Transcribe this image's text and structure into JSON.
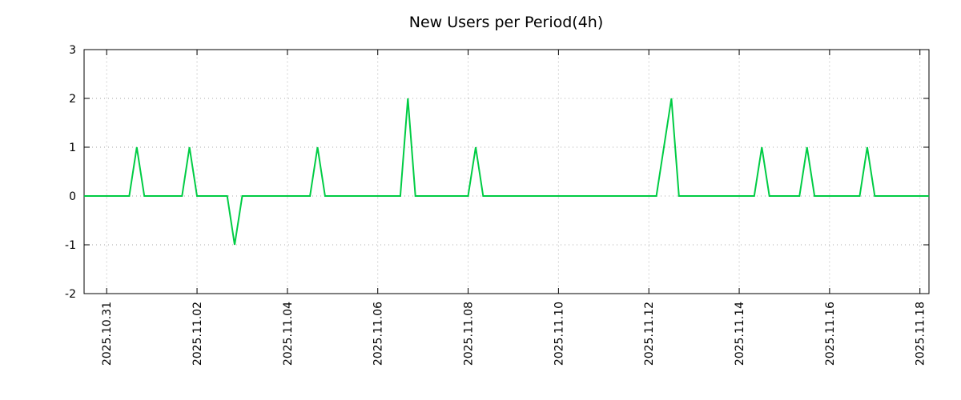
{
  "chart_data": {
    "type": "line",
    "title": "New Users per Period(4h)",
    "period": "4h",
    "grid": true,
    "legend": "none",
    "line_color": "#00cc44",
    "line_width": 2,
    "x_axis": {
      "label": "",
      "range_days_from_2025_10_31": [
        -0.5,
        18.2
      ],
      "tick_positions": [
        0,
        2,
        4,
        6,
        8,
        10,
        12,
        14,
        16,
        18
      ],
      "tick_labels": [
        "2025.10.31",
        "2025.11.02",
        "2025.11.04",
        "2025.11.06",
        "2025.11.08",
        "2025.11.10",
        "2025.11.12",
        "2025.11.14",
        "2025.11.16",
        "2025.11.18"
      ]
    },
    "y_axis": {
      "label": "",
      "range": [
        -2,
        3
      ],
      "ticks": [
        3,
        2,
        1,
        0,
        -1,
        -2
      ]
    },
    "spikes": [
      {
        "time": "2025-10-31 16:00",
        "value": 1
      },
      {
        "time": "2025-11-01 20:00",
        "value": 1
      },
      {
        "time": "2025-11-02 20:00",
        "value": -1
      },
      {
        "time": "2025-11-04 16:00",
        "value": 1
      },
      {
        "time": "2025-11-06 16:00",
        "value": 2
      },
      {
        "time": "2025-11-08 04:00",
        "value": 1
      },
      {
        "time": "2025-11-12 12:00",
        "value": 2
      },
      {
        "time": "2025-11-14 12:00",
        "value": 1
      },
      {
        "time": "2025-11-15 12:00",
        "value": 1
      },
      {
        "time": "2025-11-16 20:00",
        "value": 1
      }
    ],
    "series": [
      {
        "name": "New Users",
        "color": "#00cc44",
        "points": [
          {
            "t": -0.5,
            "v": 0
          },
          {
            "t": 0.5,
            "v": 0
          },
          {
            "t": 0.667,
            "v": 1
          },
          {
            "t": 0.833,
            "v": 0
          },
          {
            "t": 1.667,
            "v": 0
          },
          {
            "t": 1.833,
            "v": 1
          },
          {
            "t": 2.0,
            "v": 0
          },
          {
            "t": 2.667,
            "v": 0
          },
          {
            "t": 2.833,
            "v": -1
          },
          {
            "t": 3.0,
            "v": 0
          },
          {
            "t": 4.5,
            "v": 0
          },
          {
            "t": 4.667,
            "v": 1
          },
          {
            "t": 4.833,
            "v": 0
          },
          {
            "t": 6.5,
            "v": 0
          },
          {
            "t": 6.667,
            "v": 2
          },
          {
            "t": 6.833,
            "v": 0
          },
          {
            "t": 8.0,
            "v": 0
          },
          {
            "t": 8.167,
            "v": 1
          },
          {
            "t": 8.333,
            "v": 0
          },
          {
            "t": 12.167,
            "v": 0
          },
          {
            "t": 12.5,
            "v": 2
          },
          {
            "t": 12.667,
            "v": 0
          },
          {
            "t": 14.333,
            "v": 0
          },
          {
            "t": 14.5,
            "v": 1
          },
          {
            "t": 14.667,
            "v": 0
          },
          {
            "t": 15.333,
            "v": 0
          },
          {
            "t": 15.5,
            "v": 1
          },
          {
            "t": 15.667,
            "v": 0
          },
          {
            "t": 16.667,
            "v": 0
          },
          {
            "t": 16.833,
            "v": 1
          },
          {
            "t": 17.0,
            "v": 0
          },
          {
            "t": 18.2,
            "v": 0
          }
        ]
      }
    ]
  }
}
